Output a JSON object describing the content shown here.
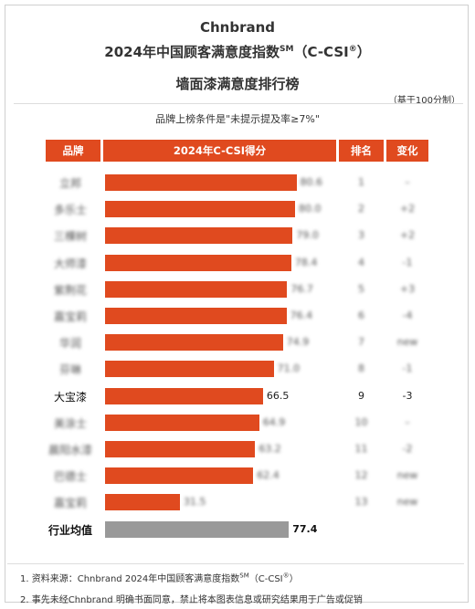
{
  "header": {
    "brand": "Chnbrand",
    "title_line1_pre": "2024年中国顾客满意度指数",
    "title_line1_sup": "SM",
    "title_line1_post": "（C-CSI",
    "title_line1_reg": "®",
    "title_line1_end": "）",
    "title_line2": "墙面漆满意度排行榜",
    "basis": "（基于100分制）",
    "condition": "品牌上榜条件是\"未提示提及率≥7%\""
  },
  "columns": {
    "brand": "品牌",
    "score": "2024年C-CSI得分",
    "rank": "排名",
    "change": "变化"
  },
  "chart_data": {
    "type": "bar",
    "orientation": "horizontal",
    "title": "墙面漆满意度排行榜",
    "categories": [
      "立邦",
      "多乐士",
      "三棵树",
      "大师漆",
      "紫荆花",
      "嘉宝莉",
      "华润",
      "芬琳",
      "大宝漆",
      "美涂士",
      "晨阳水漆",
      "巴德士",
      "嘉宝莉2"
    ],
    "values": [
      80.6,
      80.0,
      79.0,
      78.4,
      76.7,
      76.4,
      74.9,
      71.0,
      66.5,
      64.9,
      63.2,
      62.4,
      31.5
    ],
    "ranks": [
      "1",
      "2",
      "3",
      "4",
      "5",
      "6",
      "7",
      "8",
      "9",
      "10",
      "11",
      "12",
      "13"
    ],
    "changes": [
      "–",
      "+2",
      "+2",
      "-1",
      "+3",
      "-4",
      "new",
      "-1",
      "-3",
      "–",
      "-2",
      "new",
      "new"
    ],
    "highlight_index": 8,
    "average": {
      "label": "行业均值",
      "value": 77.4
    },
    "xlim": [
      0,
      100
    ]
  },
  "notes": {
    "n1_pre": "1. 资料来源：Chnbrand 2024年中国顾客满意度指数",
    "n1_sup": "SM",
    "n1_post": "（C-CSI",
    "n1_reg": "®",
    "n1_end": "）",
    "n2": "2. 事先未经Chnbrand 明确书面同意，禁止将本图表信息或研究结果用于广告或促销"
  },
  "colors": {
    "accent": "#e04a1f",
    "average": "#999999"
  }
}
